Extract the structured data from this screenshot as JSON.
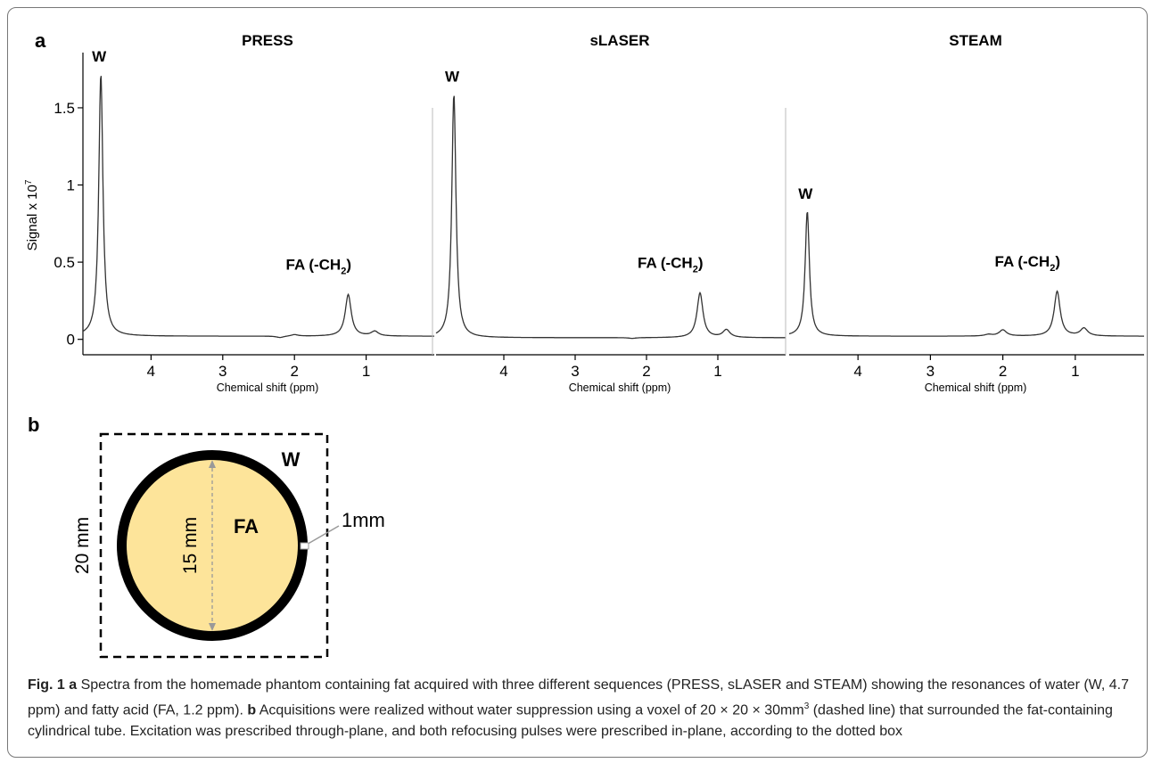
{
  "chart_data": [
    {
      "type": "line",
      "panel_label": "a",
      "title": "PRESS",
      "xlabel": "Chemical shift (ppm)",
      "ylabel": "Signal x 10",
      "ylabel_exp": "7",
      "xlim": [
        4.95,
        0.05
      ],
      "ylim": [
        -0.1,
        1.8
      ],
      "x_ticks": [
        4,
        3,
        2,
        1
      ],
      "y_ticks": [
        0,
        0.5,
        1,
        1.5
      ],
      "y_tick_labels": [
        "0",
        "0.5",
        "1",
        "1.5"
      ],
      "series": [
        {
          "baseline": 0.02,
          "peaks": [
            {
              "x": 4.7,
              "y": 1.72,
              "label": "W"
            },
            {
              "x": 2.7,
              "y": 0.02
            },
            {
              "x": 2.2,
              "y": 0.01
            },
            {
              "x": 2.0,
              "y": 0.03
            },
            {
              "x": 1.25,
              "y": 0.29,
              "label": "FA (-CH",
              "label_sub": "2",
              "label_end": ")"
            },
            {
              "x": 0.88,
              "y": 0.05
            }
          ]
        }
      ]
    },
    {
      "type": "line",
      "title": "sLASER",
      "xlabel": "Chemical shift (ppm)",
      "xlim": [
        4.95,
        0.05
      ],
      "ylim": [
        -0.1,
        1.8
      ],
      "x_ticks": [
        4,
        3,
        2,
        1
      ],
      "series": [
        {
          "baseline": 0.01,
          "peaks": [
            {
              "x": 4.7,
              "y": 1.59,
              "label": "W"
            },
            {
              "x": 2.7,
              "y": 0.01
            },
            {
              "x": 2.2,
              "y": 0.005
            },
            {
              "x": 1.25,
              "y": 0.3,
              "label": "FA (-CH",
              "label_sub": "2",
              "label_end": ")"
            },
            {
              "x": 0.88,
              "y": 0.06
            }
          ]
        }
      ]
    },
    {
      "type": "line",
      "title": "STEAM",
      "xlabel": "Chemical shift (ppm)",
      "xlim": [
        4.95,
        0.05
      ],
      "ylim": [
        -0.1,
        1.8
      ],
      "x_ticks": [
        4,
        3,
        2,
        1
      ],
      "series": [
        {
          "baseline": 0.02,
          "peaks": [
            {
              "x": 4.7,
              "y": 0.83,
              "label": "W"
            },
            {
              "x": 2.7,
              "y": 0.02
            },
            {
              "x": 2.2,
              "y": 0.03
            },
            {
              "x": 2.0,
              "y": 0.06
            },
            {
              "x": 1.5,
              "y": 0.02
            },
            {
              "x": 1.25,
              "y": 0.31,
              "label": "FA (-CH",
              "label_sub": "2",
              "label_end": ")"
            },
            {
              "x": 0.88,
              "y": 0.07
            }
          ]
        }
      ]
    }
  ],
  "diagram": {
    "panel_label": "b",
    "outer_label": "20 mm",
    "inner_label": "15 mm",
    "wall_label": "1mm",
    "water_label": "W",
    "fat_label": "FA",
    "colors": {
      "fat": "#fde49a",
      "wall": "#000000",
      "measure": "#999999"
    }
  },
  "caption": {
    "fig_label": "Fig. 1",
    "a_label": "a",
    "a_text": "Spectra from the homemade phantom containing fat acquired with three different sequences (PRESS, sLASER and STEAM) showing the resonances of water (W, 4.7 ppm) and fatty acid (FA, 1.2 ppm).",
    "b_label": "b",
    "b_text_1": "Acquisitions were realized without water suppression using a voxel of 20 × 20 × 30mm",
    "b_sup": "3",
    "b_text_2": "(dashed line) that surrounded the fat-containing cylindrical tube. Excitation was prescribed through-plane, and both refocusing pulses were prescribed in-plane, according to the dotted box"
  }
}
